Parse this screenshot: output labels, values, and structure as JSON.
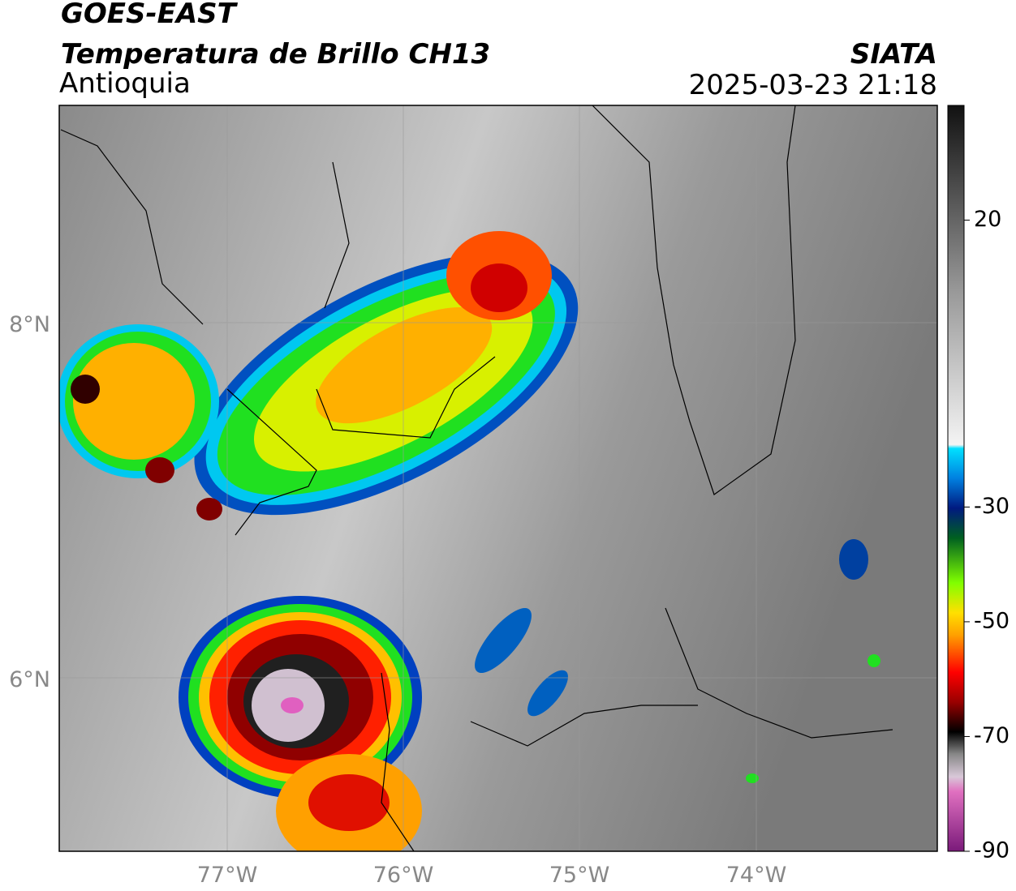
{
  "header": {
    "title": "GOES-EAST",
    "subtitle": "Temperatura de Brillo CH13",
    "region": "Antioquia",
    "source": "SIATA",
    "datetime": "2025-03-23 21:18"
  },
  "map": {
    "lat_labels": [
      "8°N",
      "6°N"
    ],
    "lon_labels": [
      "77°W",
      "76°W",
      "75°W",
      "74°W"
    ]
  },
  "colorbar": {
    "range": [
      -90,
      40
    ],
    "ticks": [
      20,
      -30,
      -50,
      -70,
      -90
    ]
  }
}
